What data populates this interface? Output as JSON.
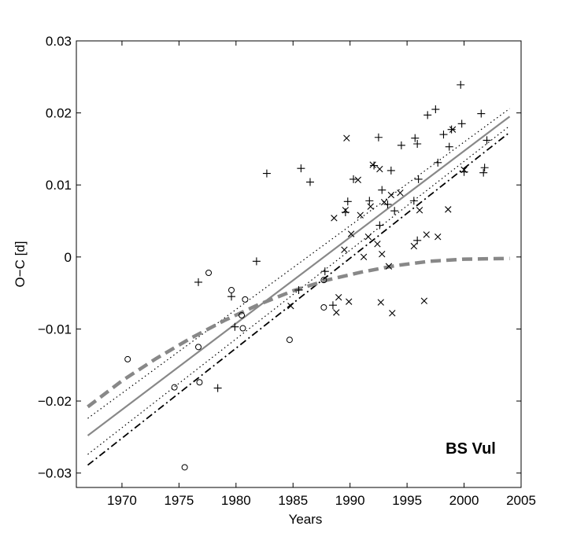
{
  "chart_data": {
    "type": "scatter",
    "title": "",
    "xlabel": "Years",
    "ylabel": "O−C  [d]",
    "annotation": "BS Vul",
    "xlim": [
      1966,
      2005
    ],
    "ylim": [
      -0.032,
      0.03
    ],
    "xticks": [
      1970,
      1975,
      1980,
      1985,
      1990,
      1995,
      2000,
      2005
    ],
    "xtick_labels": [
      "1970",
      "1975",
      "1980",
      "1985",
      "1990",
      "1995",
      "2000",
      "2005"
    ],
    "yticks": [
      -0.03,
      -0.02,
      -0.01,
      0,
      0.01,
      0.02,
      0.03
    ],
    "ytick_labels": [
      "−0.03",
      "−0.02",
      "−0.01",
      "0",
      "0.01",
      "0.02",
      "0.03"
    ],
    "grid": false,
    "colors": {
      "points": "#000000",
      "fit": "#888888",
      "bands": "#000000",
      "dashdot": "#000000"
    },
    "series": [
      {
        "marker": "circle",
        "points": [
          [
            1970.5,
            -0.0142
          ],
          [
            1974.6,
            -0.0181
          ],
          [
            1975.5,
            -0.0292
          ],
          [
            1976.7,
            -0.0125
          ],
          [
            1976.8,
            -0.0174
          ],
          [
            1977.6,
            -0.0022
          ],
          [
            1979.6,
            -0.0046
          ],
          [
            1980.5,
            -0.0081
          ],
          [
            1980.6,
            -0.0099
          ],
          [
            1980.8,
            -0.0059
          ],
          [
            1984.7,
            -0.0115
          ],
          [
            1987.7,
            -0.0032
          ],
          [
            1987.7,
            -0.007
          ]
        ]
      },
      {
        "marker": "plus",
        "points": [
          [
            1976.7,
            -0.0035
          ],
          [
            1978.4,
            -0.0182
          ],
          [
            1979.6,
            -0.0055
          ],
          [
            1979.9,
            -0.0097
          ],
          [
            1981.8,
            -0.0006
          ],
          [
            1982.7,
            0.0116
          ],
          [
            1985.5,
            -0.0046
          ],
          [
            1985.7,
            0.0123
          ],
          [
            1986.5,
            0.0104
          ],
          [
            1987.8,
            -0.002
          ],
          [
            1988.5,
            -0.0067
          ],
          [
            1989.6,
            0.0062
          ],
          [
            1989.8,
            0.0077
          ],
          [
            1990.3,
            0.0108
          ],
          [
            1991.7,
            0.0078
          ],
          [
            1992.1,
            0.0127
          ],
          [
            1992.5,
            0.0166
          ],
          [
            1992.6,
            0.0044
          ],
          [
            1992.8,
            0.0093
          ],
          [
            1993.3,
            0.0073
          ],
          [
            1993.6,
            0.012
          ],
          [
            1993.9,
            0.0064
          ],
          [
            1994.5,
            0.0155
          ],
          [
            1995.7,
            0.0165
          ],
          [
            1995.9,
            0.0157
          ],
          [
            1995.6,
            0.0078
          ],
          [
            1996.0,
            0.0108
          ],
          [
            1995.9,
            0.0023
          ],
          [
            1996.8,
            0.0197
          ],
          [
            1997.5,
            0.0205
          ],
          [
            1997.7,
            0.0131
          ],
          [
            1998.2,
            0.017
          ],
          [
            1998.7,
            0.0153
          ],
          [
            1998.9,
            0.0177
          ],
          [
            1999.7,
            0.0239
          ],
          [
            1999.8,
            0.0185
          ],
          [
            2000.0,
            0.0118
          ],
          [
            2001.5,
            0.0199
          ],
          [
            2001.8,
            0.0124
          ],
          [
            2001.7,
            0.0117
          ],
          [
            2002.0,
            0.0162
          ]
        ]
      },
      {
        "marker": "cross",
        "points": [
          [
            1984.8,
            -0.0068
          ],
          [
            1988.6,
            0.0054
          ],
          [
            1988.8,
            -0.0077
          ],
          [
            1989.0,
            -0.0056
          ],
          [
            1989.5,
            0.001
          ],
          [
            1989.6,
            0.0065
          ],
          [
            1989.7,
            0.0165
          ],
          [
            1989.9,
            -0.0062
          ],
          [
            1990.1,
            0.0032
          ],
          [
            1990.7,
            0.0107
          ],
          [
            1990.9,
            0.0058
          ],
          [
            1991.2,
            0.0
          ],
          [
            1991.6,
            0.0028
          ],
          [
            1991.8,
            0.007
          ],
          [
            1992.0,
            0.0128
          ],
          [
            1992.4,
            0.0018
          ],
          [
            1992.6,
            0.0122
          ],
          [
            1992.7,
            -0.0063
          ],
          [
            1992.8,
            0.0004
          ],
          [
            1993.0,
            0.0076
          ],
          [
            1993.4,
            -0.0013
          ],
          [
            1993.6,
            0.0086
          ],
          [
            1993.7,
            -0.0078
          ],
          [
            1994.4,
            0.0089
          ],
          [
            1995.6,
            0.0015
          ],
          [
            1996.1,
            0.0065
          ],
          [
            1996.5,
            -0.0061
          ],
          [
            1996.7,
            0.0031
          ],
          [
            1997.7,
            0.0028
          ],
          [
            1998.6,
            0.0066
          ],
          [
            1999.0,
            0.0177
          ],
          [
            2000.0,
            0.0121
          ]
        ]
      }
    ],
    "curves": [
      {
        "style": "solid-gray",
        "x": [
          1967,
          2004
        ],
        "y": [
          -0.0248,
          0.0195
        ]
      },
      {
        "style": "dotted",
        "x": [
          1967,
          2004
        ],
        "y": [
          -0.0224,
          0.0206
        ]
      },
      {
        "style": "dotted",
        "x": [
          1967,
          2004
        ],
        "y": [
          -0.0274,
          0.0182
        ]
      },
      {
        "style": "dashdot",
        "x": [
          1967,
          2004
        ],
        "y": [
          -0.0289,
          0.0173
        ]
      },
      {
        "style": "dashed-gray",
        "x": [
          1967,
          1970,
          1973,
          1976,
          1979,
          1982,
          1985,
          1988,
          1991,
          1994,
          1997,
          2000,
          2004
        ],
        "y": [
          -0.0208,
          -0.0172,
          -0.0141,
          -0.0113,
          -0.0088,
          -0.0066,
          -0.0047,
          -0.0032,
          -0.0021,
          -0.0012,
          -0.0006,
          -0.0003,
          -0.0002
        ]
      }
    ]
  }
}
